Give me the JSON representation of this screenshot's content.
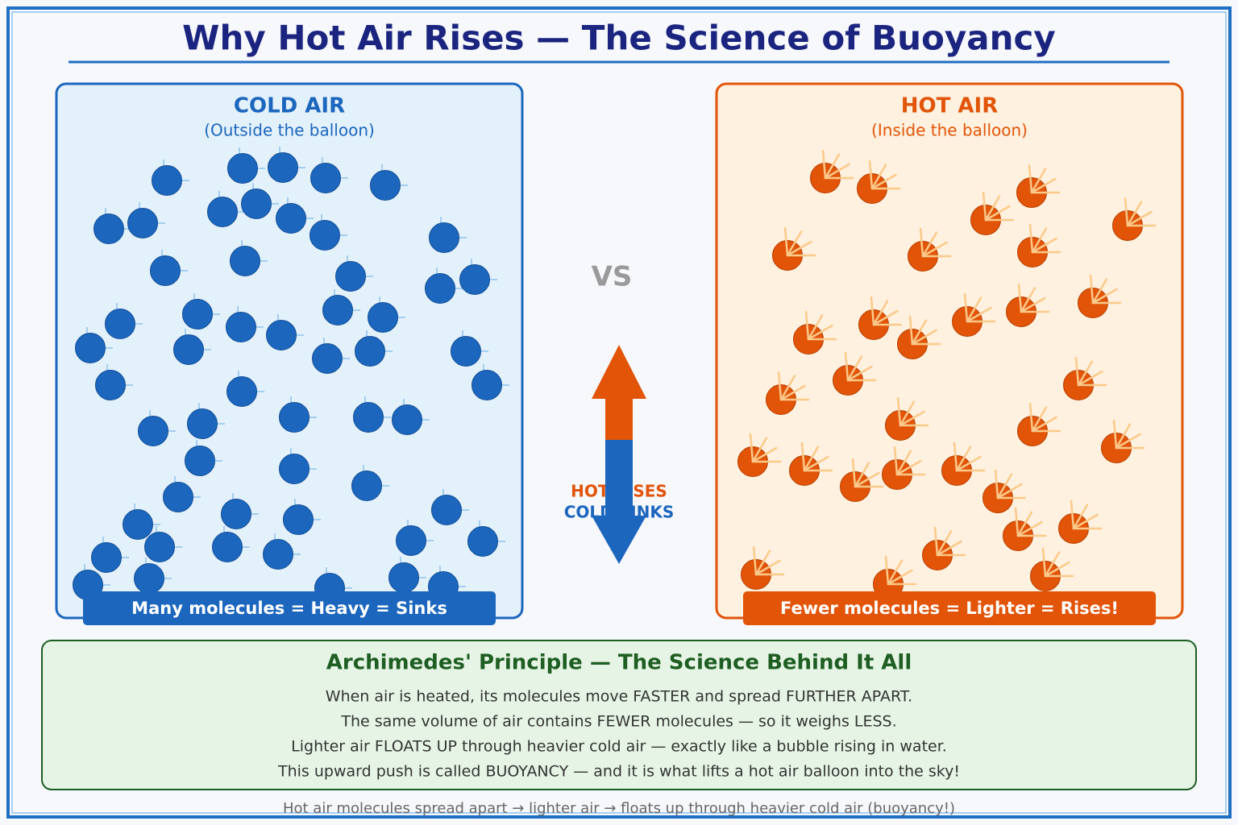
{
  "header": {
    "title": "Why Hot Air Rises — The Science of Buoyancy"
  },
  "cold_panel": {
    "title": "COLD AIR",
    "subtitle": "(Outside the balloon)",
    "caption": "Many molecules = Heavy = Sinks"
  },
  "hot_panel": {
    "title": "HOT AIR",
    "subtitle": "(Inside the balloon)",
    "caption": "Fewer molecules = Lighter = Rises!"
  },
  "middle": {
    "vs": "VS",
    "hot_label": "HOT RISES",
    "cold_label": "COLD SINKS"
  },
  "principle": {
    "title": "Archimedes' Principle — The Science Behind It All",
    "lines": [
      "When air is heated, its molecules move FASTER and spread FURTHER APART.",
      "The same volume of air contains FEWER molecules — so it weighs LESS.",
      "Lighter air FLOATS UP through heavier cold air — exactly like a bubble rising in water.",
      "This upward push is called BUOYANCY — and it is what lifts a hot air balloon into the sky!"
    ]
  },
  "footer": {
    "text": "Hot air molecules spread apart → lighter air → floats up through heavier cold air (buoyancy!)"
  }
}
